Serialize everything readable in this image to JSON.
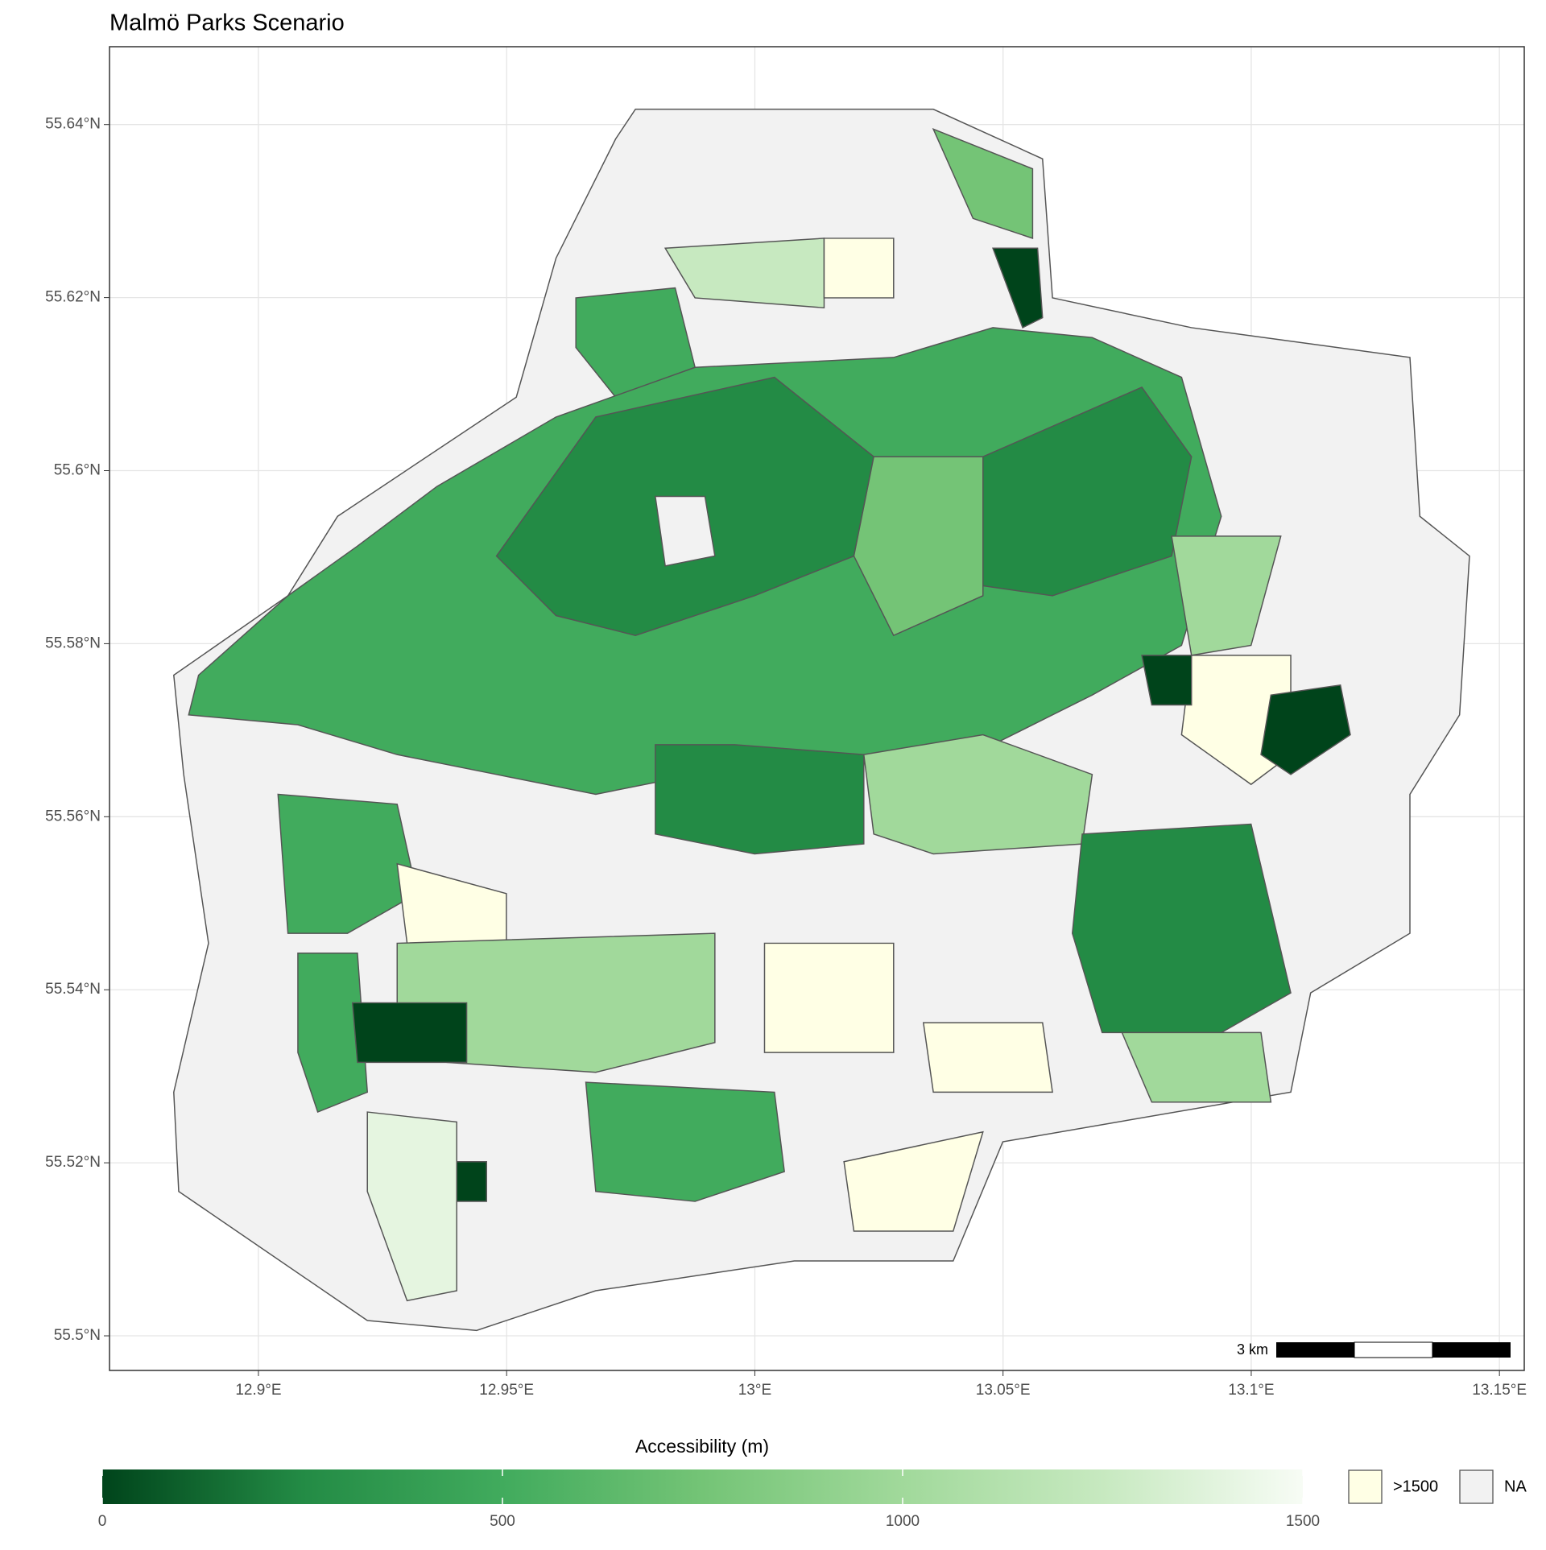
{
  "title": "Malmö Parks Scenario",
  "axes": {
    "xlim": [
      12.87,
      13.155
    ],
    "ylim": [
      55.496,
      55.649
    ],
    "xticks": [
      {
        "value": 12.9,
        "label": "12.9°E"
      },
      {
        "value": 12.95,
        "label": "12.95°E"
      },
      {
        "value": 13,
        "label": "13°E"
      },
      {
        "value": 13.05,
        "label": "13.05°E"
      },
      {
        "value": 13.1,
        "label": "13.1°E"
      },
      {
        "value": 13.15,
        "label": "13.15°E"
      }
    ],
    "yticks": [
      {
        "value": 55.5,
        "label": "55.5°N"
      },
      {
        "value": 55.52,
        "label": "55.52°N"
      },
      {
        "value": 55.54,
        "label": "55.54°N"
      },
      {
        "value": 55.56,
        "label": "55.56°N"
      },
      {
        "value": 55.58,
        "label": "55.58°N"
      },
      {
        "value": 55.6,
        "label": "55.6°N"
      },
      {
        "value": 55.62,
        "label": "55.62°N"
      },
      {
        "value": 55.64,
        "label": "55.64°N"
      }
    ],
    "grid": true
  },
  "legend": {
    "title": "Accessibility (m)",
    "lim": [
      0,
      1500
    ],
    "ticks": [
      0,
      500,
      1000,
      1500
    ],
    "colors": [
      "#00441b",
      "#238b45",
      "#41ab5d",
      "#74c476",
      "#a1d99b",
      "#c7e9c0",
      "#f7fcf5"
    ],
    "keys": [
      {
        "label": ">1500",
        "color": "#ffffe5"
      },
      {
        "label": "NA",
        "color": "#f2f2f2"
      }
    ]
  },
  "scale_bar": {
    "label": "3 km"
  }
}
